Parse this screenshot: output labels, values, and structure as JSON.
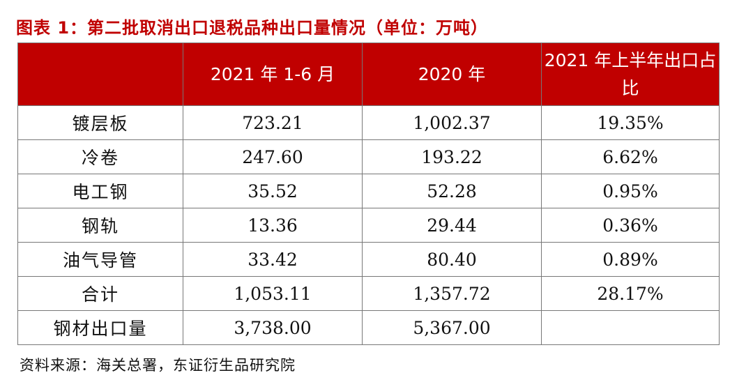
{
  "caption": "图表 1：第二批取消出口退税品种出口量情况（单位：万吨）",
  "table": {
    "headers": [
      "",
      "2021 年 1-6 月",
      "2020 年",
      "2021 年上半年出口占比"
    ],
    "rows": [
      {
        "label": "镀层板",
        "h1_2021": "723.21",
        "y2020": "1,002.37",
        "share": "19.35%"
      },
      {
        "label": "冷卷",
        "h1_2021": "247.60",
        "y2020": "193.22",
        "share": "6.62%"
      },
      {
        "label": "电工钢",
        "h1_2021": "35.52",
        "y2020": "52.28",
        "share": "0.95%"
      },
      {
        "label": "钢轨",
        "h1_2021": "13.36",
        "y2020": "29.44",
        "share": "0.36%"
      },
      {
        "label": "油气导管",
        "h1_2021": "33.42",
        "y2020": "80.40",
        "share": "0.89%"
      },
      {
        "label": "合计",
        "h1_2021": "1,053.11",
        "y2020": "1,357.72",
        "share": "28.17%"
      },
      {
        "label": "钢材出口量",
        "h1_2021": "3,738.00",
        "y2020": "5,367.00",
        "share": ""
      }
    ]
  },
  "source": "资料来源：海关总署，东证衍生品研究院",
  "colors": {
    "accent": "#c00000",
    "border": "#777777"
  }
}
